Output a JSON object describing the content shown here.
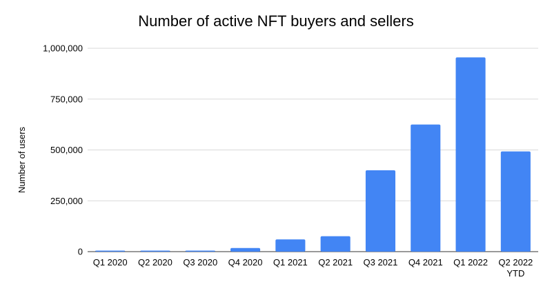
{
  "chart_data": {
    "type": "bar",
    "title": "Number of active NFT buyers and sellers",
    "xlabel": "",
    "ylabel": "Number of users",
    "categories": [
      "Q1 2020",
      "Q2 2020",
      "Q3 2020",
      "Q4 2020",
      "Q1 2021",
      "Q2 2021",
      "Q3 2021",
      "Q4 2021",
      "Q1 2022",
      "Q2 2022 YTD"
    ],
    "values": [
      5000,
      5000,
      5000,
      18000,
      60000,
      76000,
      400000,
      625000,
      955000,
      493000
    ],
    "ylim": [
      0,
      1000000
    ],
    "yticks": [
      "0",
      "250,000",
      "500,000",
      "750,000",
      "1,000,000"
    ],
    "grid": true,
    "colors": {
      "bar": "#4285f4",
      "grid": "#d9d9d9",
      "axis": "#333333"
    }
  }
}
